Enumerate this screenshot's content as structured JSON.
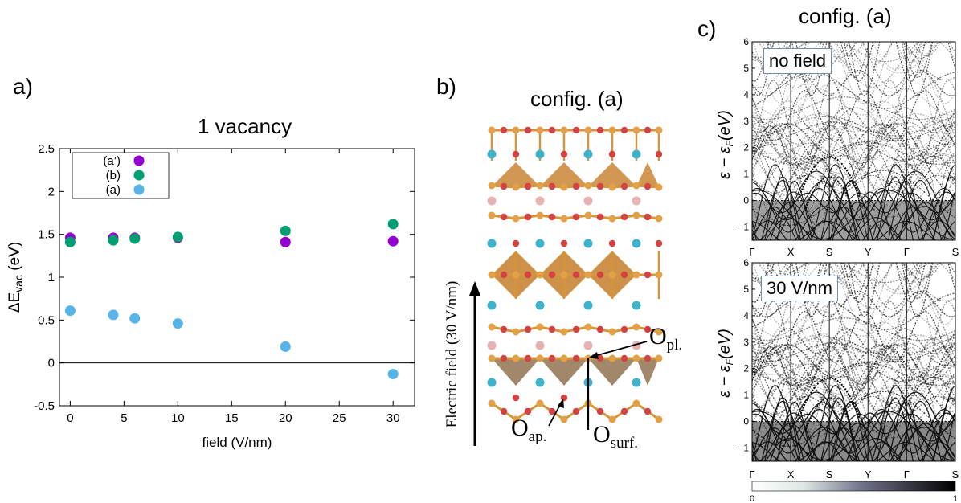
{
  "panel_a": {
    "label": "a)",
    "chart_data": {
      "type": "scatter",
      "title": "1 vacancy",
      "xlabel": "field (V/nm)",
      "ylabel": "ΔE",
      "ylabel_sub": "vac",
      "ylabel_unit": " (eV)",
      "xlim": [
        -1,
        32
      ],
      "ylim": [
        -0.5,
        2.5
      ],
      "xticks": [
        0,
        5,
        10,
        15,
        20,
        25,
        30
      ],
      "yticks": [
        -0.5,
        0,
        0.5,
        1,
        1.5,
        2,
        2.5
      ],
      "ytick_labels": [
        "-0.5",
        "0",
        "0.5",
        "1",
        "1.5",
        "2",
        "2.5"
      ],
      "legend_position": "top-left",
      "series": [
        {
          "name": "(a’)",
          "color": "#9400d3",
          "x": [
            0,
            4,
            6,
            10,
            20,
            30
          ],
          "y": [
            1.46,
            1.46,
            1.46,
            1.46,
            1.41,
            1.42
          ]
        },
        {
          "name": "(b)",
          "color": "#009e73",
          "x": [
            0,
            4,
            6,
            10,
            20,
            30
          ],
          "y": [
            1.41,
            1.43,
            1.45,
            1.47,
            1.54,
            1.62
          ]
        },
        {
          "name": "(a)",
          "color": "#56b4e9",
          "x": [
            0,
            4,
            6,
            10,
            20,
            30
          ],
          "y": [
            0.61,
            0.56,
            0.52,
            0.46,
            0.19,
            -0.13
          ]
        }
      ]
    }
  },
  "panel_b": {
    "label": "b)",
    "title": "config. (a)",
    "arrow_label": "Electric field (30 V/nm)",
    "o_pl": "O",
    "o_pl_sub": "pl.",
    "o_ap": "O",
    "o_ap_sub": "ap.",
    "o_surf": "O",
    "o_surf_sub": "surf."
  },
  "panel_c": {
    "label": "c)",
    "title": "config. (a)",
    "top_tag": "no field",
    "bottom_tag": "30 V/nm",
    "ylabel_eps": "ε − ε",
    "ylabel_sub": "F",
    "ylabel_unit": "(eV)",
    "yticks": [
      "6",
      "5",
      "4",
      "3",
      "2",
      "1",
      "0",
      "−1"
    ],
    "kpoints": [
      "Γ",
      "X",
      "S",
      "Y",
      "Γ",
      "S"
    ],
    "colorbar_min": "0",
    "colorbar_max": "1"
  }
}
